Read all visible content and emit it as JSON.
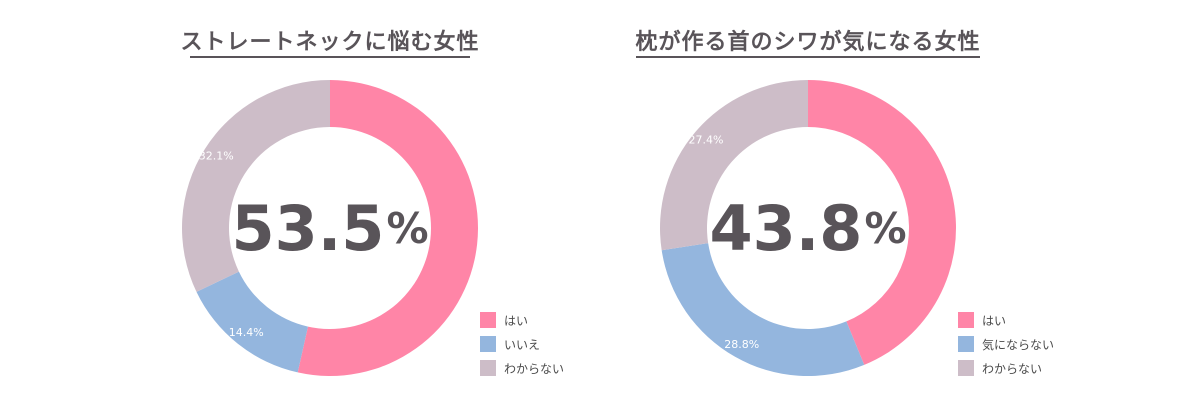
{
  "chart_data": [
    {
      "type": "pie",
      "title": "ストレートネックに悩む女性",
      "center_value": "53.5",
      "center_unit": "%",
      "categories": [
        "はい",
        "いいえ",
        "わからない"
      ],
      "values": [
        53.5,
        14.4,
        32.1
      ],
      "value_labels": [
        "",
        "14.4%",
        "32.1%"
      ],
      "colors": [
        "#FF85A7",
        "#94B6DE",
        "#CDBDC8"
      ],
      "legend_position": "bottom-right"
    },
    {
      "type": "pie",
      "title": "枕が作る首のシワが気になる女性",
      "center_value": "43.8",
      "center_unit": "%",
      "categories": [
        "はい",
        "気にならない",
        "わからない"
      ],
      "values": [
        43.8,
        28.8,
        27.4
      ],
      "value_labels": [
        "",
        "28.8%",
        "27.4%"
      ],
      "colors": [
        "#FF85A7",
        "#94B6DE",
        "#CDBDC8"
      ],
      "legend_position": "bottom-right"
    }
  ]
}
